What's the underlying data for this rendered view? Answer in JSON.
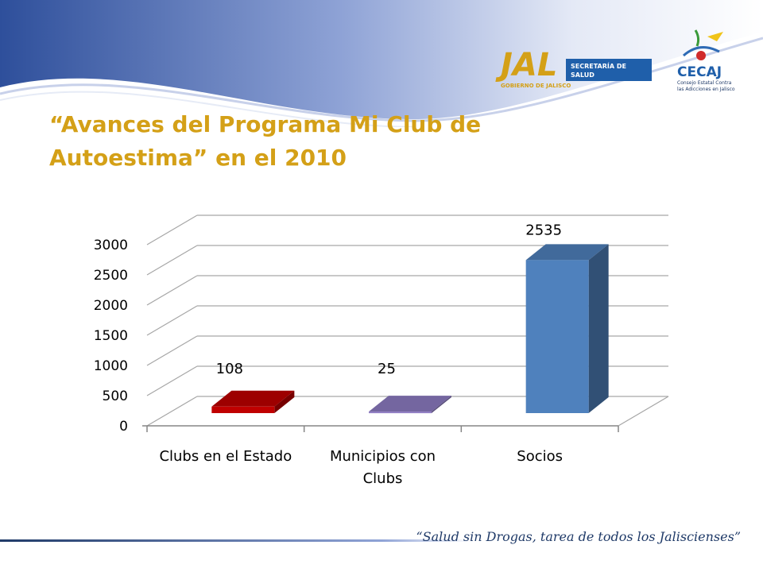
{
  "slide": {
    "title_line1": "“Avances del Programa Mi Club de",
    "title_line2": "Autoestima”  en el 2010",
    "footer": "“Salud sin Drogas, tarea de todos los Jaliscienses”"
  },
  "logos": {
    "jal_text": "JAL",
    "jal_subtitle": "GOBIERNO DE JALISCO",
    "salud_line1": "SECRETARÍA DE",
    "salud_line2": "SALUD",
    "cecaj_name": "CECAJ",
    "cecaj_line1": "Consejo Estatal Contra",
    "cecaj_line2": "las Adicciones en Jalisco"
  },
  "colors": {
    "title": "#D4A017",
    "banner_dark": "#2E4F9B",
    "bar_clubs": "#C00000",
    "bar_municipios": "#8E7CC3",
    "bar_socios": "#4F81BD",
    "footer_text": "#1F3A68"
  },
  "chart_data": {
    "type": "bar",
    "style": "3d-column",
    "categories": [
      [
        "Clubs en el Estado"
      ],
      [
        "Municipios con",
        "Clubs"
      ],
      [
        "Socios"
      ]
    ],
    "values": [
      108,
      25,
      2535
    ],
    "data_labels": [
      "108",
      "25",
      "2535"
    ],
    "bar_colors": [
      "#C00000",
      "#8E7CC3",
      "#4F81BD"
    ],
    "yticks": [
      "0",
      "500",
      "1000",
      "1500",
      "2000",
      "2500",
      "3000"
    ],
    "ylim": [
      0,
      3000
    ],
    "grid": true,
    "legend": "none"
  }
}
